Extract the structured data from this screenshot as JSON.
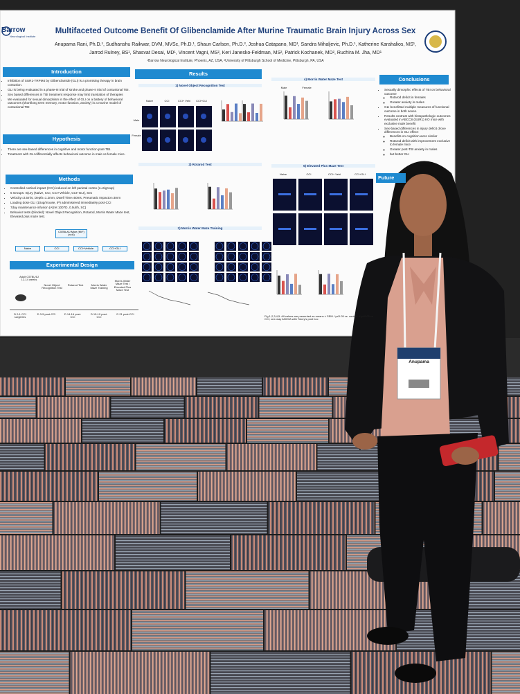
{
  "poster": {
    "logo": "Barrow",
    "logo_sub": "Neurological Institute",
    "title": "Multifaceted Outcome Benefit Of Glibenclamide After Murine Traumatic Brain Injury Across Sex",
    "authors": [
      "Anupama Rani, Ph.D.¹, Sudhanshu Raikwar, DVM, MVSc, Ph.D.¹, Shaun Carlson, Ph.D.², Joshua Catapano, MD¹, Sandra Mihaljevic, Ph.D.¹, Katherine Karahalios, MS¹,",
      "Jarrod Rulney, BS¹, Shasvat Desai, MD¹, Vincent Vagni, MS², Keri Janesko-Feldman, MS², Patrick Kochanek, MD², Ruchira M. Jha, MD¹"
    ],
    "affiliation": "¹Barrow Neurological Institute, Phoenix, AZ, USA, ²University of Pittsburgh School of Medicine, Pittsburgh, PA, USA",
    "introduction": {
      "heading": "Introduction",
      "bullets": [
        "Inhibition of SUR1-TRPM4 by Glibenclamide (GLI) is a promising therapy in brain contusion.",
        "GLI is being evaluated in a phase-III trial of stroke and phase-II trial of contusional TBI.",
        "Sex based differences in TBI treatment response may limit translation of therapies",
        "We evaluated for sexual dimorphism in the effect of GLI on a battery of behavioral outcomes (short/long term memory, motor function, anxiety) in a murine model of contusional TBI"
      ]
    },
    "hypothesis": {
      "heading": "Hypothesis",
      "bullets": [
        "There are sex-based differences in cognitive and motor function post-TBI.",
        "Treatment with GLI differentially affects behavioral outcome in male vs female mice."
      ]
    },
    "methods": {
      "heading": "Methods",
      "bullets": [
        "Controlled cortical impact (CCI) induced on left parietal cortex (n=6/group)",
        "5 Groups: Injury (Naive, CCI, CCI+Vehicle, CCI+GLI), Sex",
        "Velocity=3.5m/s, Depth=1.2mm, Dwell Time=50ms, Pneumatic Impactor=3mm",
        "Loading dose GLI (10ug/mouse, IP) administered immediately post-CCI",
        "7day maintenance infusion (Alzet 1007D, 0.5ul/h, SC)",
        "Behavior tests (blinded): Novel Object Recognition, Rotarod, Morris Water Maze test, Elevated plus maze test."
      ],
      "mice": "C57BL/6J Mice (M/F) (n=6)",
      "groups": [
        "Naive",
        "CCI",
        "CCI+Vehicle",
        "CCI+GLI"
      ]
    },
    "experimental_design": {
      "heading": "Experimental Design",
      "animal": "Adult C57BL/6J 12-14 weeks",
      "tests": [
        "Novel Object Recognition Test",
        "Rotarod Test",
        "Morris Water Maze Training",
        "Morris Water Maze Test / Elevated Plus Maze Test"
      ],
      "timeline": [
        "D 0-1 CCI surgeries",
        "D 3-5 post-CCI",
        "D 14-16 post-CCI",
        "D 15-19 post-CCI",
        "D 21 post-CCI"
      ]
    },
    "results": {
      "heading": "Results",
      "panels": [
        "1) Novel Object Recognition Test",
        "2) Rotarod Test",
        "3) Morris Water Maze Training",
        "4) Morris Water Maze Test",
        "5) Elevated Plus Maze Test"
      ],
      "group_labels": [
        "Naive",
        "CCI",
        "CCI+ Vehi",
        "CCI+GLI"
      ],
      "sex_labels": [
        "Male",
        "Female"
      ],
      "note": "Fig 1,2,3,4,5: All values are presented as means ± SEM. *p≤0.05 vs. control; # p≤0.05 vs CCI; one-way ANOVA with Tukey's post hoc"
    },
    "conclusions": {
      "heading": "Conclusions",
      "bullets": [
        {
          "text": "Sexually dimorphic effects of TBI on behavioral outcome",
          "sub": [
            "Rotarod deficit in females",
            "Greater anxiety in males"
          ]
        },
        {
          "text": "GLI benefitted multiple measures of functional outcome in both sexes.",
          "sub": []
        },
        {
          "text": "Results contrast with histopathologic outcomes evaluated in ABCC8 (SUR1) KO mice with exclusive male benefit",
          "sub": []
        },
        {
          "text": "Sex-based differences in injury deficit drove differences in GLI effect:",
          "sub": [
            "Benefits on cognition were similar",
            "Rotarod deficit with improvement exclusive to female mice",
            "Greater post-TBI anxiety in males",
            "but better GLI"
          ]
        }
      ]
    },
    "future": {
      "heading": "Future"
    }
  },
  "badge": {
    "name": "Anupama"
  }
}
